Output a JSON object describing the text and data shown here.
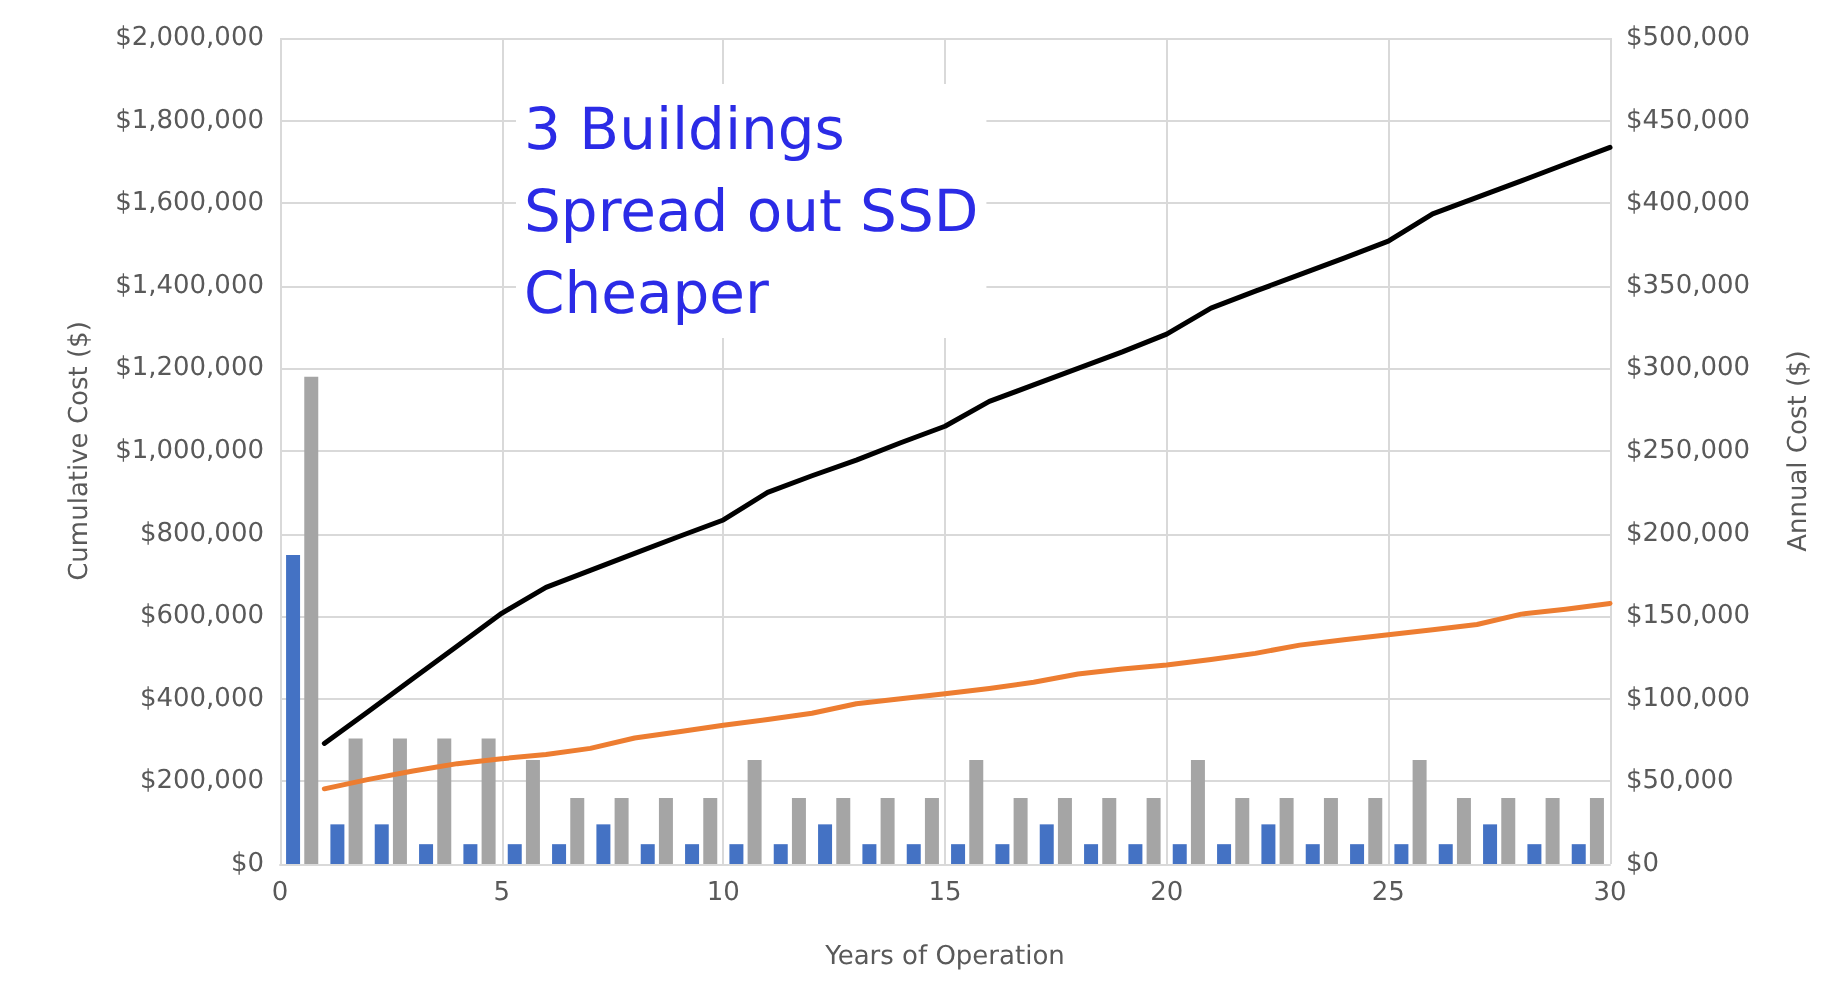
{
  "chart_data": {
    "type": "line",
    "annotations": [
      "3 Buildings\nSpread out SSD\nCheaper"
    ],
    "xlabel": "Years of Operation",
    "ylabel": "Cumulative Cost ($)",
    "y2label": "Annual Cost ($)",
    "xlim": [
      0,
      30
    ],
    "xticks": [
      0,
      5,
      10,
      15,
      20,
      25,
      30
    ],
    "ylim": [
      0,
      2000000
    ],
    "yticks": [
      {
        "value": 0,
        "label": "$0"
      },
      {
        "value": 200000,
        "label": "$200,000"
      },
      {
        "value": 400000,
        "label": "$400,000"
      },
      {
        "value": 600000,
        "label": "$600,000"
      },
      {
        "value": 800000,
        "label": "$800,000"
      },
      {
        "value": 1000000,
        "label": "$1,000,000"
      },
      {
        "value": 1200000,
        "label": "$1,200,000"
      },
      {
        "value": 1400000,
        "label": "$1,400,000"
      },
      {
        "value": 1600000,
        "label": "$1,600,000"
      },
      {
        "value": 1800000,
        "label": "$1,800,000"
      },
      {
        "value": 2000000,
        "label": "$2,000,000"
      }
    ],
    "y2lim": [
      0,
      500000
    ],
    "y2ticks": [
      {
        "value": 0,
        "label": "$0"
      },
      {
        "value": 50000,
        "label": "$50,000"
      },
      {
        "value": 100000,
        "label": "$100,000"
      },
      {
        "value": 150000,
        "label": "$150,000"
      },
      {
        "value": 200000,
        "label": "$200,000"
      },
      {
        "value": 250000,
        "label": "$250,000"
      },
      {
        "value": 300000,
        "label": "$300,000"
      },
      {
        "value": 350000,
        "label": "$350,000"
      },
      {
        "value": 400000,
        "label": "$400,000"
      },
      {
        "value": 450000,
        "label": "$450,000"
      },
      {
        "value": 500000,
        "label": "$500,000"
      }
    ],
    "grid": true,
    "marker": "none",
    "line_style": "solid",
    "series": [
      {
        "type": "bar",
        "axis": "y2",
        "color": "#4472c4",
        "x": [
          0.5,
          1.5,
          2.5,
          3.5,
          4.5,
          5.5,
          6.5,
          7.5,
          8.5,
          9.5,
          10.5,
          11.5,
          12.5,
          13.5,
          14.5,
          15.5,
          16.5,
          17.5,
          18.5,
          19.5,
          20.5,
          21.5,
          22.5,
          23.5,
          24.5,
          25.5,
          26.5,
          27.5,
          28.5,
          29.5
        ],
        "values": [
          187000,
          24000,
          24000,
          12000,
          12000,
          12000,
          12000,
          24000,
          12000,
          12000,
          12000,
          12000,
          24000,
          12000,
          12000,
          12000,
          12000,
          24000,
          12000,
          12000,
          12000,
          12000,
          24000,
          12000,
          12000,
          12000,
          12000,
          24000,
          12000,
          12000
        ]
      },
      {
        "type": "bar",
        "axis": "y2",
        "color": "#a5a5a5",
        "x": [
          0.5,
          1.5,
          2.5,
          3.5,
          4.5,
          5.5,
          6.5,
          7.5,
          8.5,
          9.5,
          10.5,
          11.5,
          12.5,
          13.5,
          14.5,
          15.5,
          16.5,
          17.5,
          18.5,
          19.5,
          20.5,
          21.5,
          22.5,
          23.5,
          24.5,
          25.5,
          26.5,
          27.5,
          28.5,
          29.5
        ],
        "values": [
          295000,
          76000,
          76000,
          76000,
          76000,
          63000,
          40000,
          40000,
          40000,
          40000,
          63000,
          40000,
          40000,
          40000,
          40000,
          63000,
          40000,
          40000,
          40000,
          40000,
          63000,
          40000,
          40000,
          40000,
          40000,
          63000,
          40000,
          40000,
          40000,
          40000
        ]
      },
      {
        "color": "#000000",
        "x": [
          1,
          2,
          3,
          4,
          5,
          6,
          7,
          8,
          9,
          10,
          11,
          12,
          13,
          14,
          15,
          16,
          17,
          18,
          19,
          20,
          21,
          22,
          23,
          24,
          25,
          26,
          27,
          28,
          29,
          30
        ],
        "values": [
          292000,
          370000,
          449000,
          528000,
          607000,
          670000,
          711000,
          752000,
          793000,
          833000,
          900000,
          940000,
          978000,
          1020000,
          1060000,
          1120000,
          1160000,
          1200000,
          1240000,
          1283000,
          1346000,
          1387000,
          1427000,
          1467000,
          1508000,
          1574000,
          1614000,
          1654000,
          1695000,
          1735000
        ]
      },
      {
        "color": "#ed7d31",
        "x": [
          1,
          2,
          3,
          4,
          5,
          6,
          7,
          8,
          9,
          10,
          11,
          12,
          13,
          14,
          15,
          16,
          17,
          18,
          19,
          20,
          21,
          22,
          23,
          24,
          25,
          26,
          27,
          28,
          29,
          30
        ],
        "values": [
          182000,
          205000,
          225000,
          243000,
          255000,
          265000,
          280000,
          305000,
          320000,
          336000,
          350000,
          365000,
          388000,
          400000,
          412000,
          425000,
          440000,
          460000,
          472000,
          482000,
          495000,
          510000,
          530000,
          543000,
          555000,
          567000,
          580000,
          605000,
          617000,
          631000
        ]
      }
    ]
  }
}
